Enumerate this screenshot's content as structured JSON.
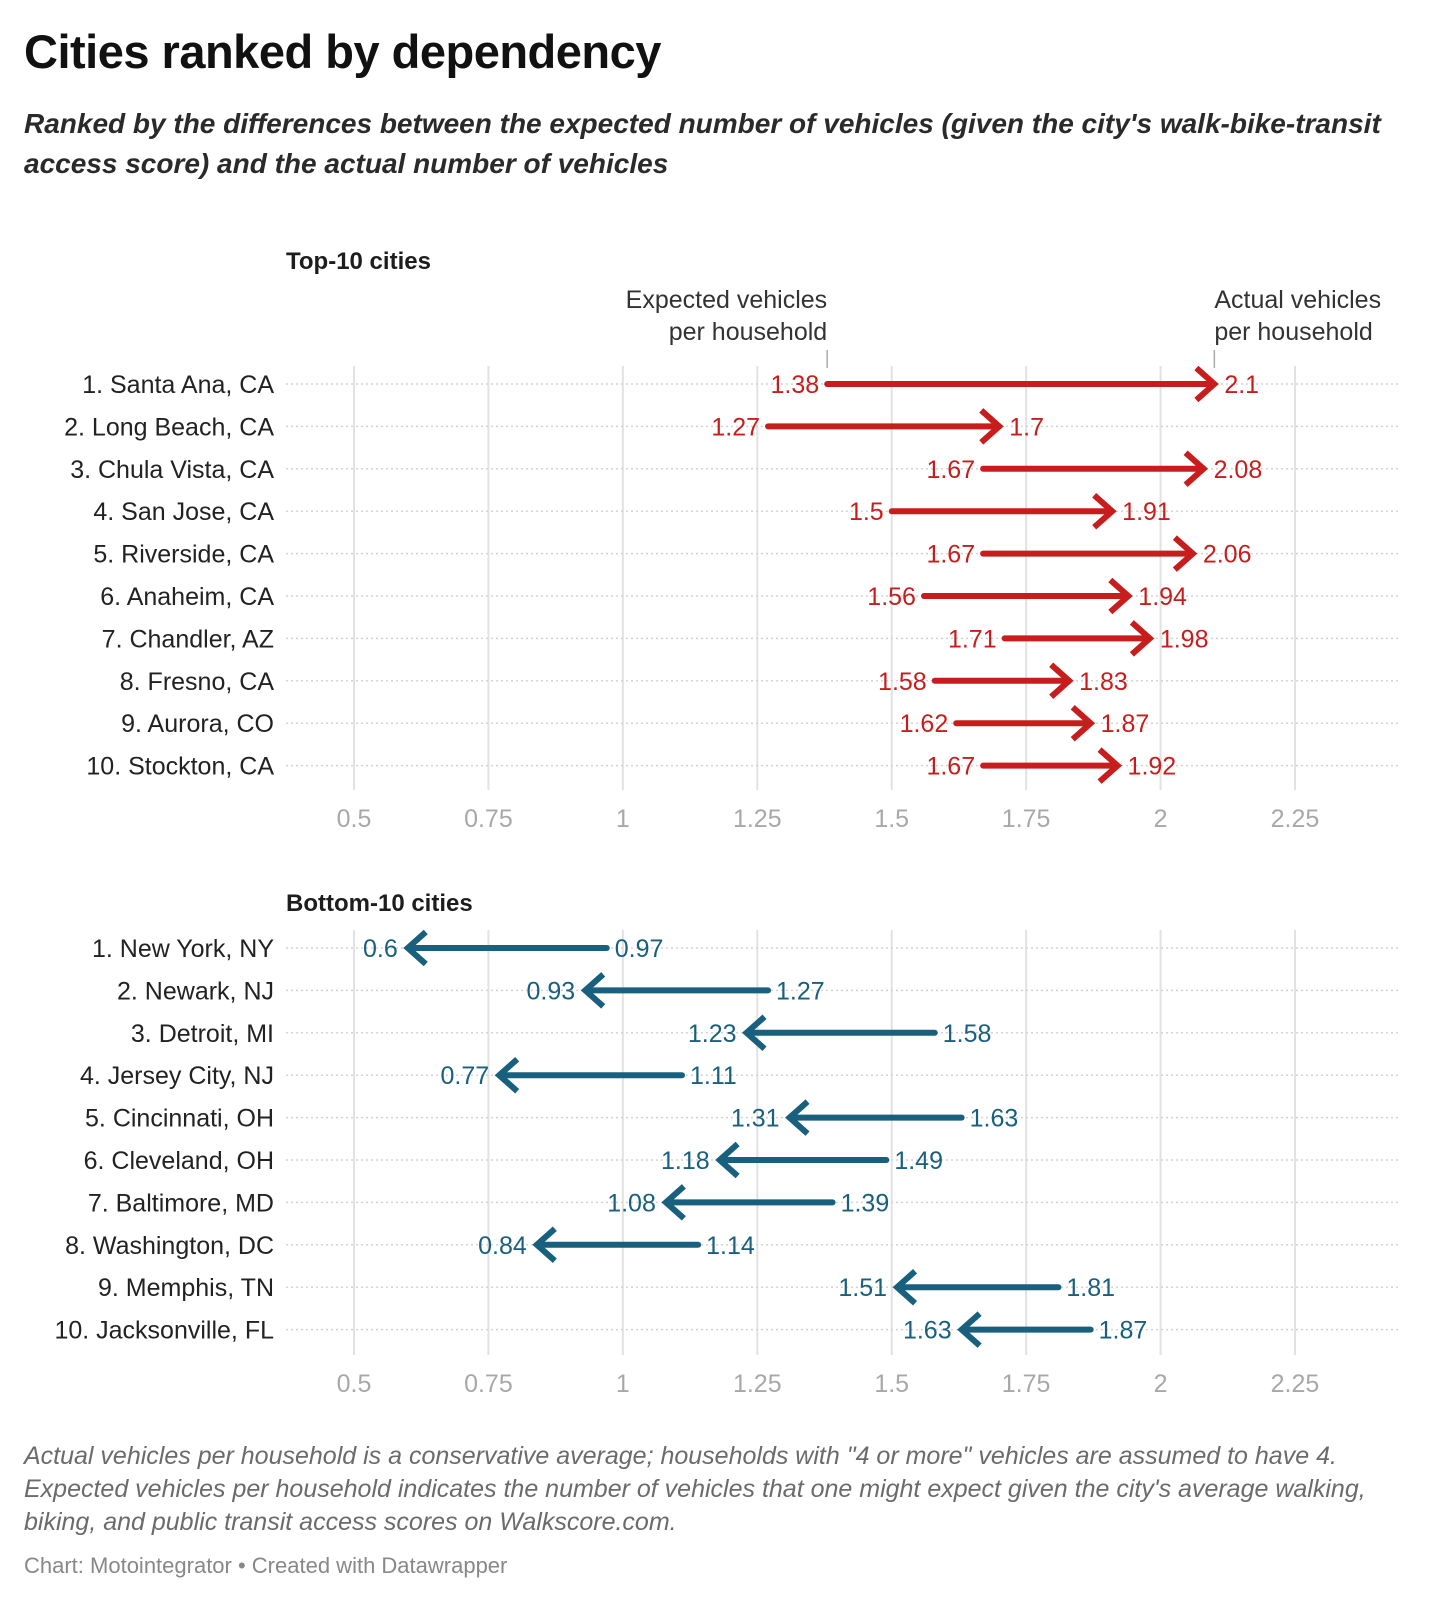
{
  "header": {
    "title": "Cities ranked by dependency",
    "subtitle": "Ranked by the differences between the expected number of vehicles (given the city's walk-bike-transit access score) and the actual number of vehicles"
  },
  "colors": {
    "top_series": "#c71e1d",
    "bottom_series": "#18607d",
    "grid": "#e2e2e2",
    "tick_label": "#a8a8a8",
    "category_label": "#222222"
  },
  "chart_data": [
    {
      "type": "arrow-plot",
      "title": "Top-10 cities",
      "annotations": {
        "start": "Expected vehicles per household",
        "end": "Actual vehicles per household"
      },
      "xlim": [
        0.5,
        2.25
      ],
      "xticks": [
        0.5,
        0.75,
        1,
        1.25,
        1.5,
        1.75,
        2,
        2.25
      ],
      "xtick_labels": [
        "0.5",
        "0.75",
        "1",
        "1.25",
        "1.5",
        "1.75",
        "2",
        "2.25"
      ],
      "grid": true,
      "direction": "right",
      "categories": [
        "1. Santa Ana, CA",
        "2. Long Beach, CA",
        "3. Chula Vista, CA",
        "4. San Jose, CA",
        "5. Riverside, CA",
        "6. Anaheim, CA",
        "7. Chandler, AZ",
        "8. Fresno, CA",
        "9. Aurora, CO",
        "10. Stockton, CA"
      ],
      "series": [
        {
          "name": "Expected vehicles per household",
          "values": [
            1.38,
            1.27,
            1.67,
            1.5,
            1.67,
            1.56,
            1.71,
            1.58,
            1.62,
            1.67
          ],
          "labels": [
            "1.38",
            "1.27",
            "1.67",
            "1.5",
            "1.67",
            "1.56",
            "1.71",
            "1.58",
            "1.62",
            "1.67"
          ]
        },
        {
          "name": "Actual vehicles per household",
          "values": [
            2.1,
            1.7,
            2.08,
            1.91,
            2.06,
            1.94,
            1.98,
            1.83,
            1.87,
            1.92
          ],
          "labels": [
            "2.1",
            "1.7",
            "2.08",
            "1.91",
            "2.06",
            "1.94",
            "1.98",
            "1.83",
            "1.87",
            "1.92"
          ]
        }
      ]
    },
    {
      "type": "arrow-plot",
      "title": "Bottom-10 cities",
      "xlim": [
        0.5,
        2.25
      ],
      "xticks": [
        0.5,
        0.75,
        1,
        1.25,
        1.5,
        1.75,
        2,
        2.25
      ],
      "xtick_labels": [
        "0.5",
        "0.75",
        "1",
        "1.25",
        "1.5",
        "1.75",
        "2",
        "2.25"
      ],
      "grid": true,
      "direction": "left",
      "categories": [
        "1. New York, NY",
        "2. Newark, NJ",
        "3. Detroit, MI",
        "4. Jersey City, NJ",
        "5. Cincinnati, OH",
        "6. Cleveland, OH",
        "7. Baltimore, MD",
        "8. Washington, DC",
        "9. Memphis, TN",
        "10. Jacksonville, FL"
      ],
      "series": [
        {
          "name": "Expected vehicles per household",
          "values": [
            0.97,
            1.27,
            1.58,
            1.11,
            1.63,
            1.49,
            1.39,
            1.14,
            1.81,
            1.87
          ],
          "labels": [
            "0.97",
            "1.27",
            "1.58",
            "1.11",
            "1.63",
            "1.49",
            "1.39",
            "1.14",
            "1.81",
            "1.87"
          ]
        },
        {
          "name": "Actual vehicles per household",
          "values": [
            0.6,
            0.93,
            1.23,
            0.77,
            1.31,
            1.18,
            1.08,
            0.84,
            1.51,
            1.63
          ],
          "labels": [
            "0.6",
            "0.93",
            "1.23",
            "0.77",
            "1.31",
            "1.18",
            "1.08",
            "0.84",
            "1.51",
            "1.63"
          ]
        }
      ]
    }
  ],
  "footer": {
    "notes": "Actual vehicles per household is a conservative average; households with \"4 or more\" vehicles are assumed to have 4. Expected vehicles per household indicates the number of vehicles that one might expect given the city's average walking, biking, and public transit access scores on Walkscore.com.",
    "byline": "Chart: Motointegrator • Created with Datawrapper"
  }
}
